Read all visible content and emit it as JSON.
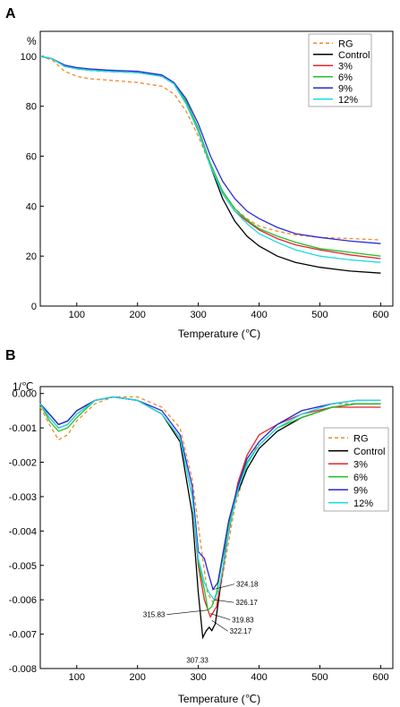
{
  "colors": {
    "RG": "#f08a2a",
    "Control": "#000000",
    "3%": "#e8232a",
    "6%": "#22c22a",
    "9%": "#2a2ad8",
    "12%": "#19dbe8"
  },
  "chart_data": [
    {
      "panel": "A",
      "type": "line",
      "ylabel": "%",
      "xlabel": "Temperature (℃)",
      "xlim": [
        40,
        620
      ],
      "ylim": [
        0,
        110
      ],
      "xticks": [
        100,
        200,
        300,
        400,
        500,
        600
      ],
      "yticks": [
        0,
        20,
        40,
        60,
        80,
        100
      ],
      "legend_position": "top-right",
      "series": [
        {
          "name": "RG",
          "dashed": true,
          "x": [
            40,
            60,
            80,
            100,
            120,
            150,
            200,
            240,
            260,
            280,
            300,
            320,
            340,
            360,
            380,
            400,
            430,
            460,
            500,
            550,
            600
          ],
          "y": [
            100,
            98.5,
            94,
            92,
            91,
            90.5,
            89.5,
            88,
            85,
            78,
            68,
            56,
            46,
            39,
            35,
            32,
            30,
            28.5,
            27.5,
            27,
            26.5
          ]
        },
        {
          "name": "Control",
          "dashed": false,
          "x": [
            40,
            60,
            80,
            100,
            120,
            150,
            200,
            240,
            260,
            280,
            300,
            320,
            340,
            360,
            380,
            400,
            430,
            460,
            500,
            550,
            600
          ],
          "y": [
            100,
            99,
            96,
            95,
            94.5,
            94,
            93.5,
            92,
            89,
            81,
            70,
            56,
            43,
            34,
            28,
            24,
            20,
            17.5,
            15.5,
            14,
            13.2
          ]
        },
        {
          "name": "3%",
          "dashed": false,
          "x": [
            40,
            60,
            80,
            100,
            120,
            150,
            200,
            240,
            260,
            280,
            300,
            320,
            340,
            360,
            380,
            400,
            430,
            460,
            500,
            550,
            600
          ],
          "y": [
            100,
            99,
            96,
            95,
            94.5,
            94,
            93.5,
            92,
            89,
            82,
            71,
            57,
            45,
            38,
            34,
            30.5,
            27,
            24.5,
            22.5,
            20.5,
            19
          ]
        },
        {
          "name": "6%",
          "dashed": false,
          "x": [
            40,
            60,
            80,
            100,
            120,
            150,
            200,
            240,
            260,
            280,
            300,
            320,
            340,
            360,
            380,
            400,
            430,
            460,
            500,
            550,
            600
          ],
          "y": [
            100,
            99,
            96,
            95,
            94.5,
            94,
            93.5,
            92,
            89,
            82,
            71,
            57,
            46,
            39,
            34.5,
            31,
            28,
            25.5,
            23,
            21.5,
            20
          ]
        },
        {
          "name": "9%",
          "dashed": false,
          "x": [
            40,
            60,
            80,
            100,
            120,
            150,
            200,
            240,
            260,
            280,
            300,
            320,
            340,
            360,
            380,
            400,
            430,
            460,
            500,
            550,
            600
          ],
          "y": [
            100,
            99,
            96.5,
            95.5,
            95,
            94.5,
            94,
            92.5,
            89.5,
            83,
            73,
            60,
            50,
            43,
            38,
            35,
            31.5,
            29,
            27.5,
            26,
            25
          ]
        },
        {
          "name": "12%",
          "dashed": false,
          "x": [
            40,
            60,
            80,
            100,
            120,
            150,
            200,
            240,
            260,
            280,
            300,
            320,
            340,
            360,
            380,
            400,
            430,
            460,
            500,
            550,
            600
          ],
          "y": [
            100,
            99,
            96,
            95,
            94.5,
            94,
            93.5,
            92,
            89,
            81,
            70,
            56,
            45,
            38,
            33,
            29,
            25.5,
            22.5,
            20,
            18.5,
            17.5
          ]
        }
      ]
    },
    {
      "panel": "B",
      "type": "line",
      "ylabel": "1/℃",
      "xlabel": "Temperature (℃)",
      "xlim": [
        40,
        620
      ],
      "ylim": [
        -0.008,
        0.0002
      ],
      "xticks": [
        100,
        200,
        300,
        400,
        500,
        600
      ],
      "yticks": [
        0.0,
        -0.001,
        -0.002,
        -0.003,
        -0.004,
        -0.005,
        -0.006,
        -0.007,
        -0.008
      ],
      "ytick_labels": [
        "0.000",
        "-0.001",
        "-0.002",
        "-0.003",
        "-0.004",
        "-0.005",
        "-0.006",
        "-0.007",
        "-0.008"
      ],
      "legend_position": "right",
      "annotations": [
        {
          "label": "324.18",
          "x": 324.18,
          "y": -0.0057
        },
        {
          "label": "326.17",
          "x": 326.17,
          "y": -0.006
        },
        {
          "label": "315.83",
          "x": 315.83,
          "y": -0.0063
        },
        {
          "label": "319.83",
          "x": 319.83,
          "y": -0.0064
        },
        {
          "label": "322.17",
          "x": 322.17,
          "y": -0.0066
        },
        {
          "label": "307.33",
          "x": 307.33,
          "y": -0.0071
        }
      ],
      "series": [
        {
          "name": "RG",
          "dashed": true,
          "x": [
            40,
            55,
            70,
            85,
            100,
            130,
            160,
            200,
            240,
            270,
            290,
            305,
            315,
            325,
            335,
            345,
            360,
            380,
            400,
            430,
            470,
            520,
            560,
            600
          ],
          "y": [
            -0.0004,
            -0.0009,
            -0.00135,
            -0.0012,
            -0.0008,
            -0.0003,
            -0.0001,
            -0.0001,
            -0.0004,
            -0.001,
            -0.0025,
            -0.0045,
            -0.0058,
            -0.0061,
            -0.0058,
            -0.0048,
            -0.0033,
            -0.0021,
            -0.0014,
            -0.0009,
            -0.0005,
            -0.0003,
            -0.0003,
            -0.0003
          ]
        },
        {
          "name": "Control",
          "dashed": false,
          "x": [
            40,
            55,
            70,
            85,
            100,
            130,
            160,
            200,
            240,
            270,
            290,
            300,
            307.33,
            313,
            318,
            322.17,
            328,
            335,
            345,
            360,
            380,
            400,
            430,
            470,
            520,
            560,
            600
          ],
          "y": [
            -0.0003,
            -0.0006,
            -0.0009,
            -0.0008,
            -0.0005,
            -0.0002,
            -0.0001,
            -0.0002,
            -0.0006,
            -0.0014,
            -0.0035,
            -0.0058,
            -0.0071,
            -0.0069,
            -0.0068,
            -0.0069,
            -0.0067,
            -0.0058,
            -0.0045,
            -0.0031,
            -0.0022,
            -0.0016,
            -0.0011,
            -0.0007,
            -0.0004,
            -0.0003,
            -0.0003
          ]
        },
        {
          "name": "3%",
          "dashed": false,
          "x": [
            40,
            55,
            70,
            85,
            100,
            130,
            160,
            200,
            240,
            270,
            290,
            300,
            310,
            319.83,
            330,
            340,
            350,
            365,
            380,
            400,
            430,
            470,
            520,
            560,
            600
          ],
          "y": [
            -0.0003,
            -0.0007,
            -0.001,
            -0.0009,
            -0.0006,
            -0.0002,
            -0.0001,
            -0.0002,
            -0.0006,
            -0.0013,
            -0.003,
            -0.005,
            -0.006,
            -0.0065,
            -0.0062,
            -0.0052,
            -0.004,
            -0.0026,
            -0.0018,
            -0.0012,
            -0.0009,
            -0.0006,
            -0.0004,
            -0.0004,
            -0.0004
          ]
        },
        {
          "name": "6%",
          "dashed": false,
          "x": [
            40,
            55,
            70,
            85,
            100,
            130,
            160,
            200,
            240,
            270,
            290,
            300,
            310,
            315.83,
            322,
            330,
            340,
            350,
            365,
            380,
            400,
            430,
            470,
            520,
            560,
            600
          ],
          "y": [
            -0.0003,
            -0.0008,
            -0.0011,
            -0.001,
            -0.0007,
            -0.0002,
            -0.0001,
            -0.0002,
            -0.0006,
            -0.0013,
            -0.003,
            -0.0049,
            -0.0057,
            -0.0063,
            -0.0062,
            -0.0058,
            -0.0048,
            -0.0038,
            -0.0027,
            -0.002,
            -0.0015,
            -0.001,
            -0.0007,
            -0.0004,
            -0.0003,
            -0.0003
          ]
        },
        {
          "name": "9%",
          "dashed": false,
          "x": [
            40,
            55,
            70,
            85,
            100,
            130,
            160,
            200,
            240,
            270,
            290,
            300,
            310,
            316,
            324.18,
            332,
            340,
            350,
            365,
            380,
            400,
            430,
            470,
            520,
            560,
            600
          ],
          "y": [
            -0.0003,
            -0.0006,
            -0.0009,
            -0.0008,
            -0.0005,
            -0.0002,
            -0.0001,
            -0.0002,
            -0.0005,
            -0.0012,
            -0.0027,
            -0.0046,
            -0.0048,
            -0.0052,
            -0.0057,
            -0.0055,
            -0.0047,
            -0.0037,
            -0.0027,
            -0.0019,
            -0.0014,
            -0.0009,
            -0.0005,
            -0.0003,
            -0.0002,
            -0.0002
          ]
        },
        {
          "name": "12%",
          "dashed": false,
          "x": [
            40,
            55,
            70,
            85,
            100,
            130,
            160,
            200,
            240,
            270,
            290,
            300,
            310,
            318,
            326.17,
            334,
            342,
            352,
            367,
            382,
            400,
            430,
            470,
            520,
            560,
            600
          ],
          "y": [
            -0.0003,
            -0.0007,
            -0.001,
            -0.0009,
            -0.0006,
            -0.0002,
            -0.0001,
            -0.0002,
            -0.0006,
            -0.0013,
            -0.003,
            -0.0048,
            -0.0055,
            -0.0058,
            -0.006,
            -0.0057,
            -0.0049,
            -0.0038,
            -0.0027,
            -0.002,
            -0.0015,
            -0.001,
            -0.0006,
            -0.0003,
            -0.0002,
            -0.0002
          ]
        }
      ]
    }
  ]
}
